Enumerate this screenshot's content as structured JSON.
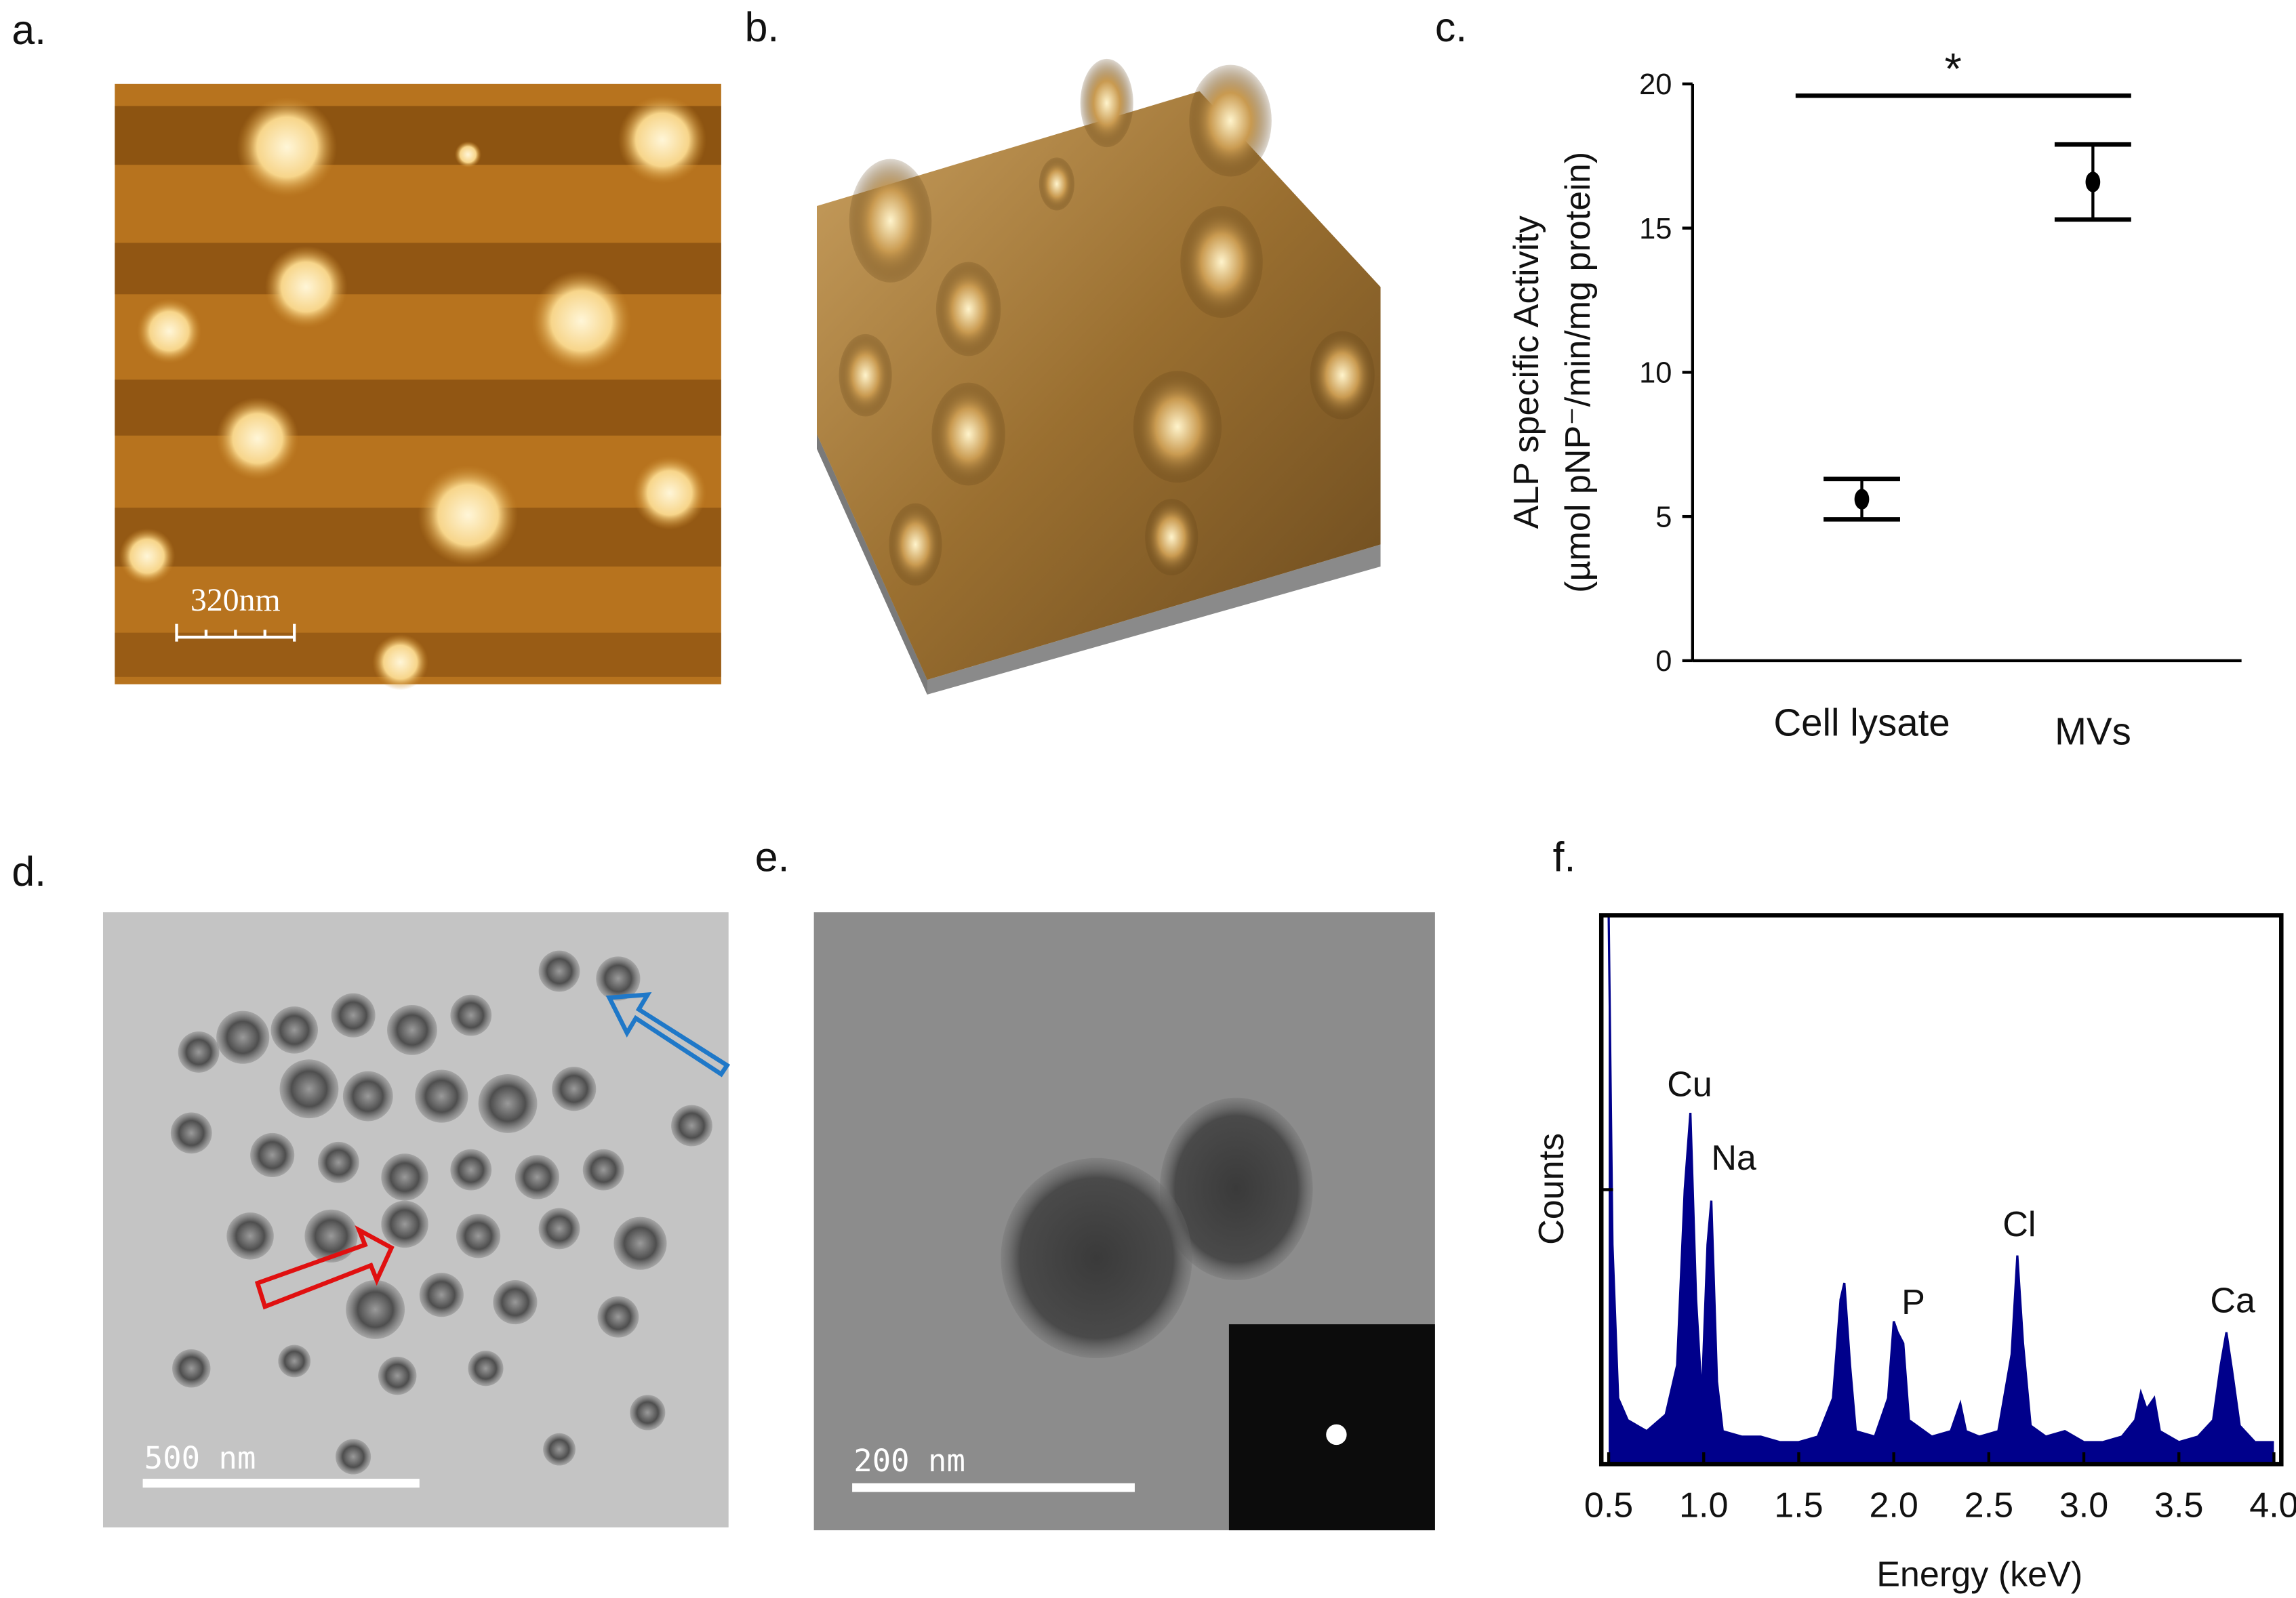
{
  "panels": {
    "a": "a.",
    "b": "b.",
    "c": "c.",
    "d": "d.",
    "e": "e.",
    "f": "f."
  },
  "scale_bars": {
    "a": "320nm",
    "d": "500 nm",
    "e": "200 nm"
  },
  "chart_data": [
    {
      "type": "errorbar",
      "categories": [
        "Cell lysate",
        "MVs"
      ],
      "values": [
        5.6,
        16.6
      ],
      "errors": [
        0.7,
        1.3
      ],
      "color": "#000000",
      "ylim": [
        0,
        20
      ],
      "yticks": [
        0,
        5,
        10,
        15,
        20
      ],
      "ylabel": [
        "ALP specific Activity",
        "(µmol pNP⁻/min/mg protein)"
      ],
      "annotation": "*"
    },
    {
      "type": "area",
      "xlabel": "Energy (keV)",
      "ylabel": "Counts",
      "color": "#00008b",
      "x": [
        0.5,
        0.52,
        0.55,
        0.6,
        0.7,
        0.8,
        0.86,
        0.9,
        0.93,
        0.96,
        0.99,
        1.02,
        1.04,
        1.07,
        1.1,
        1.2,
        1.3,
        1.4,
        1.5,
        1.6,
        1.68,
        1.72,
        1.74,
        1.77,
        1.8,
        1.9,
        1.97,
        2.0,
        2.02,
        2.05,
        2.08,
        2.2,
        2.3,
        2.35,
        2.38,
        2.45,
        2.55,
        2.62,
        2.65,
        2.68,
        2.72,
        2.8,
        2.9,
        3.0,
        3.1,
        3.2,
        3.27,
        3.3,
        3.33,
        3.37,
        3.4,
        3.5,
        3.6,
        3.68,
        3.72,
        3.75,
        3.78,
        3.82,
        3.9,
        4.0
      ],
      "values": [
        100,
        40,
        12,
        8,
        6,
        9,
        18,
        50,
        64,
        30,
        12,
        40,
        48,
        15,
        6,
        5,
        5,
        4,
        4,
        5,
        12,
        30,
        33,
        18,
        6,
        5,
        12,
        26,
        24,
        22,
        8,
        5,
        6,
        11,
        6,
        5,
        6,
        20,
        38,
        22,
        7,
        5,
        6,
        4,
        4,
        5,
        8,
        13,
        10,
        12,
        6,
        4,
        5,
        8,
        18,
        24,
        17,
        7,
        4,
        4
      ],
      "xlim": [
        0.5,
        4.0
      ],
      "ylim": [
        0,
        100
      ],
      "xticks": [
        0.5,
        {
          "value": 1,
          "label": "1.0"
        },
        1.5,
        {
          "value": 2,
          "label": "2.0"
        },
        2.5,
        {
          "value": 3,
          "label": "3.0"
        },
        3.5,
        {
          "value": 4,
          "label": "4.0"
        }
      ],
      "annotations": [
        "Cu",
        "Na",
        "P",
        "Cl",
        "Ca"
      ]
    }
  ]
}
